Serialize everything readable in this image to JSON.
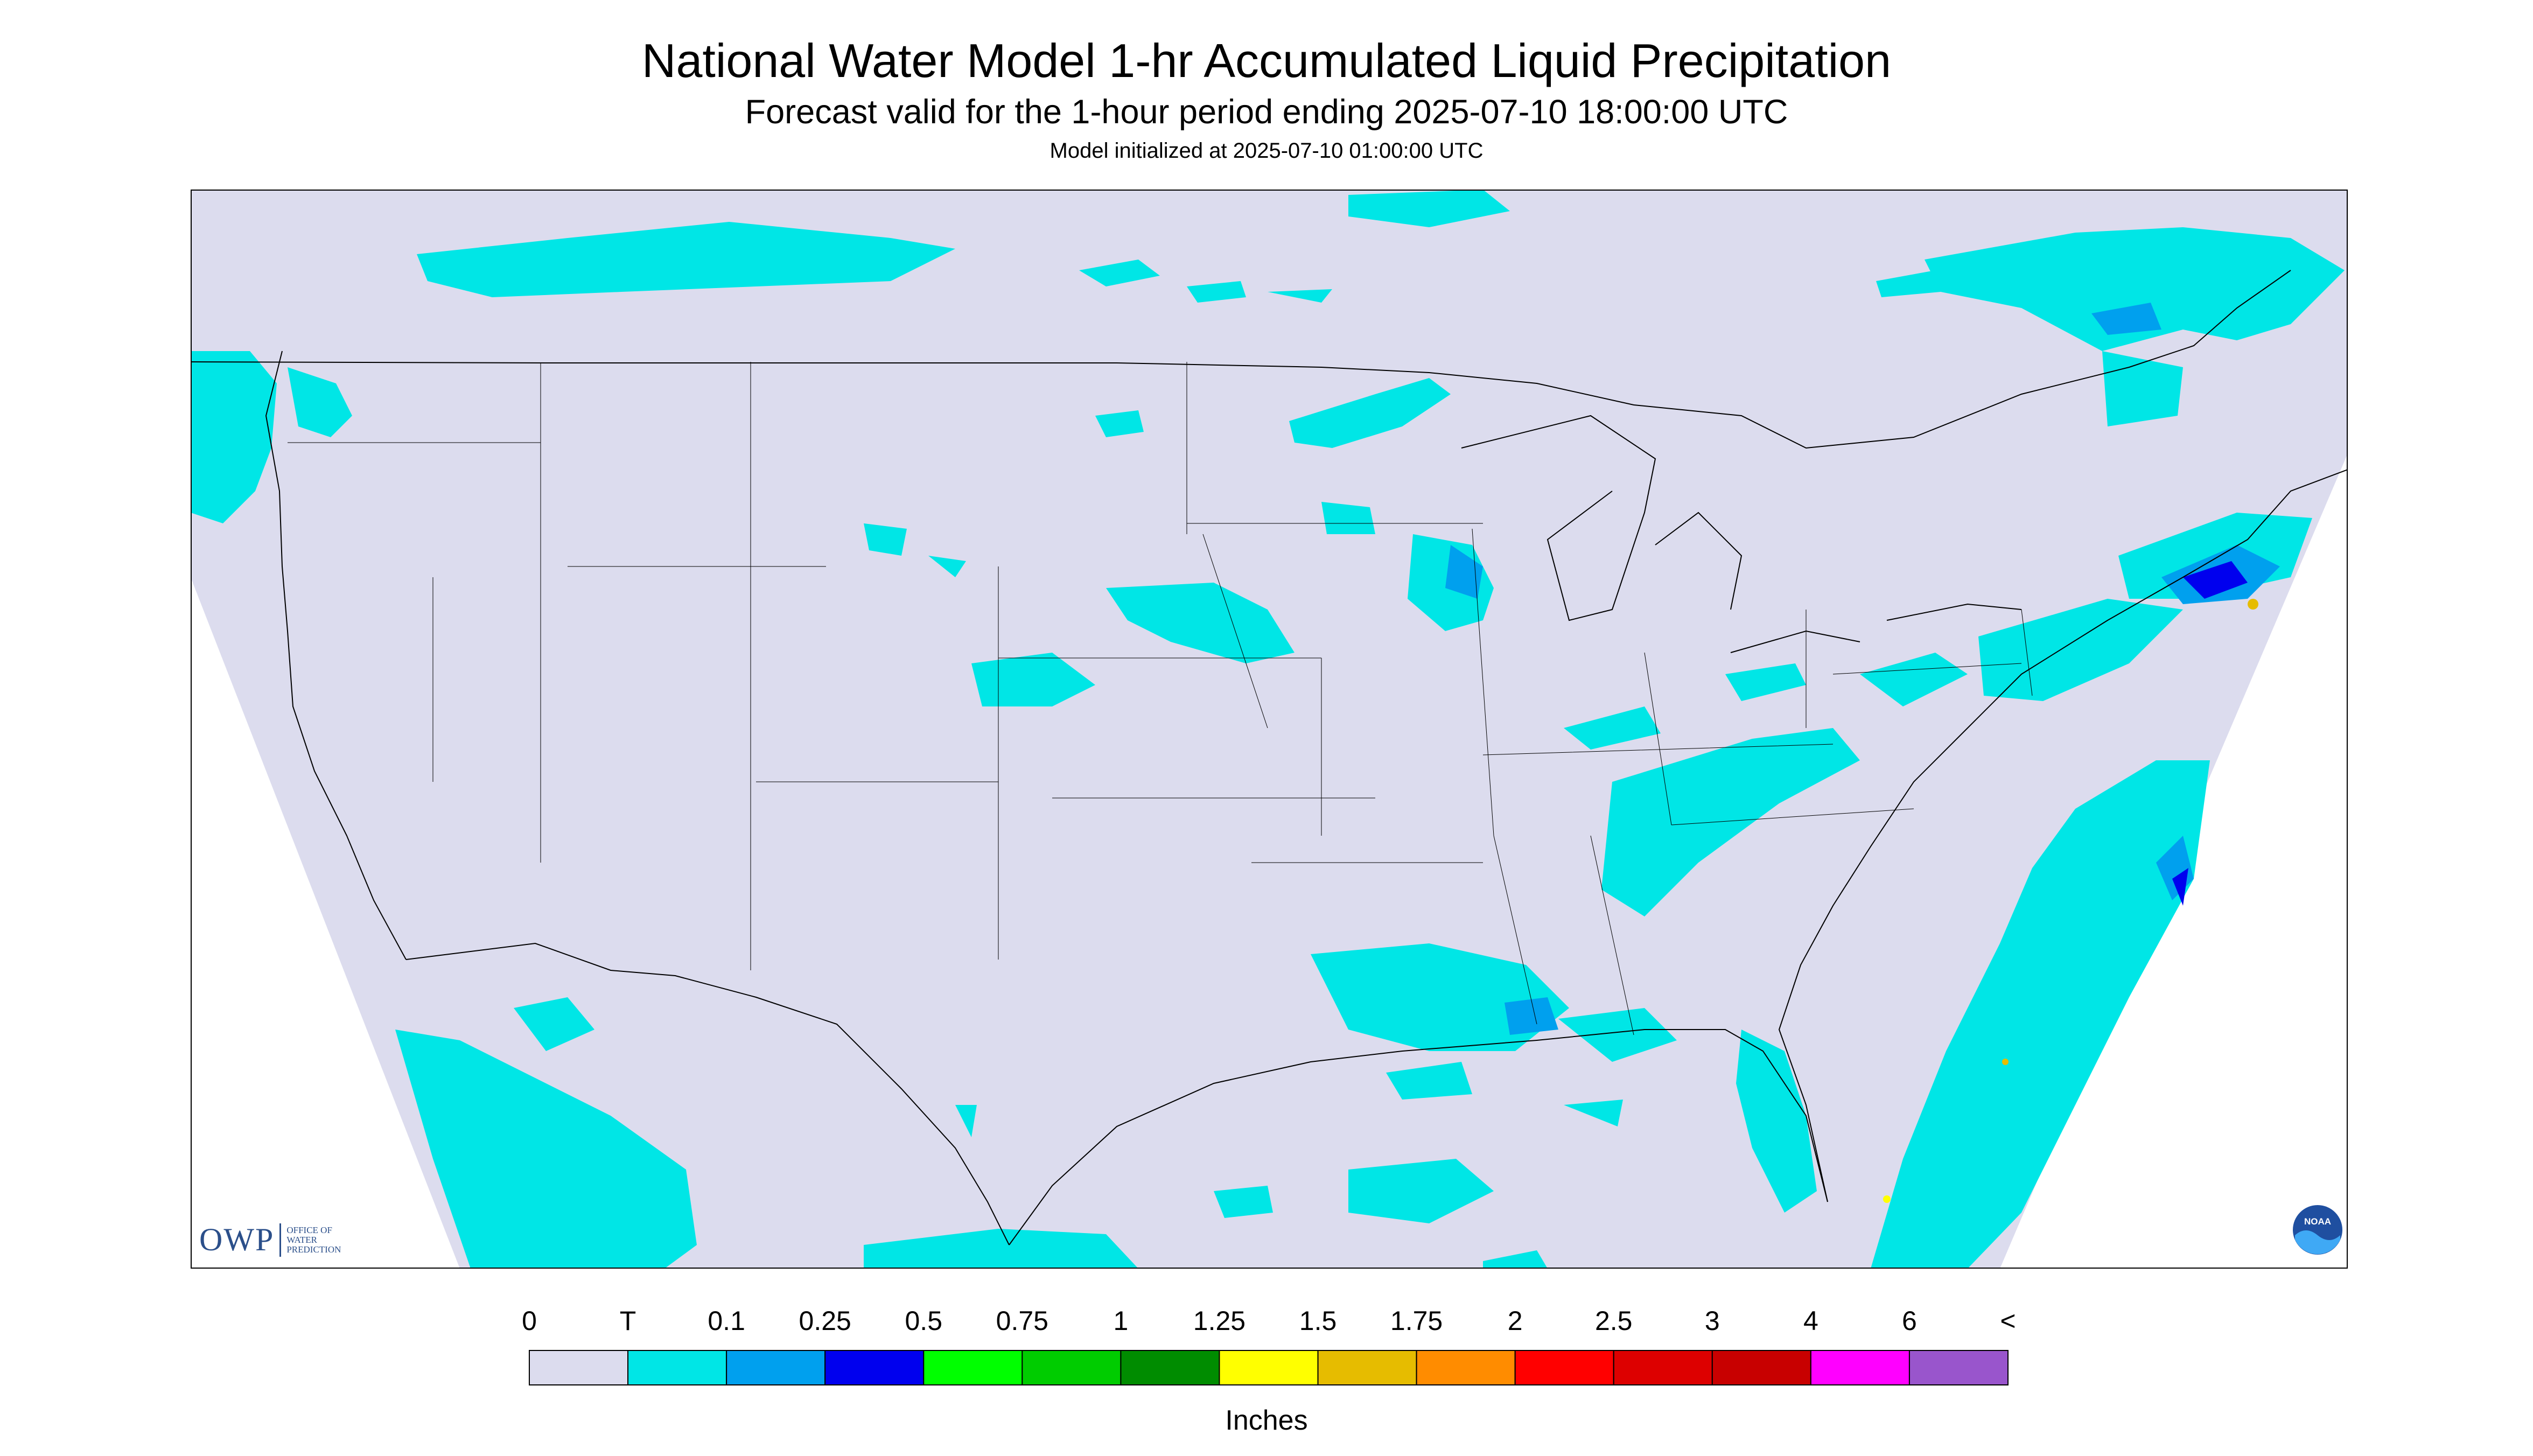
{
  "header": {
    "title": "National Water Model 1-hr Accumulated Liquid Precipitation",
    "subtitle": "Forecast valid for the 1-hour period ending 2025-07-10 18:00:00 UTC",
    "init": "Model initialized at 2025-07-10 01:00:00 UTC"
  },
  "map": {
    "background_color": "#dcdcee",
    "border_color": "#000000",
    "coverage": "CONUS"
  },
  "legend": {
    "units": "Inches",
    "labels": [
      "0",
      "T",
      "0.1",
      "0.25",
      "0.5",
      "0.75",
      "1",
      "1.25",
      "1.5",
      "1.75",
      "2",
      "2.5",
      "3",
      "4",
      "6",
      "<"
    ],
    "colors": [
      "#dcdcee",
      "#00e6e6",
      "#00a0ee",
      "#0000ee",
      "#00ff00",
      "#00cc00",
      "#008c00",
      "#ffff00",
      "#e6bc00",
      "#ff8c00",
      "#ff0000",
      "#dd0000",
      "#c80000",
      "#ff00ff",
      "#9955cc"
    ]
  },
  "logos": {
    "owp_mark": "OWP",
    "owp_text": "OFFICE OF WATER PREDICTION",
    "noaa_text": "NOAA"
  }
}
